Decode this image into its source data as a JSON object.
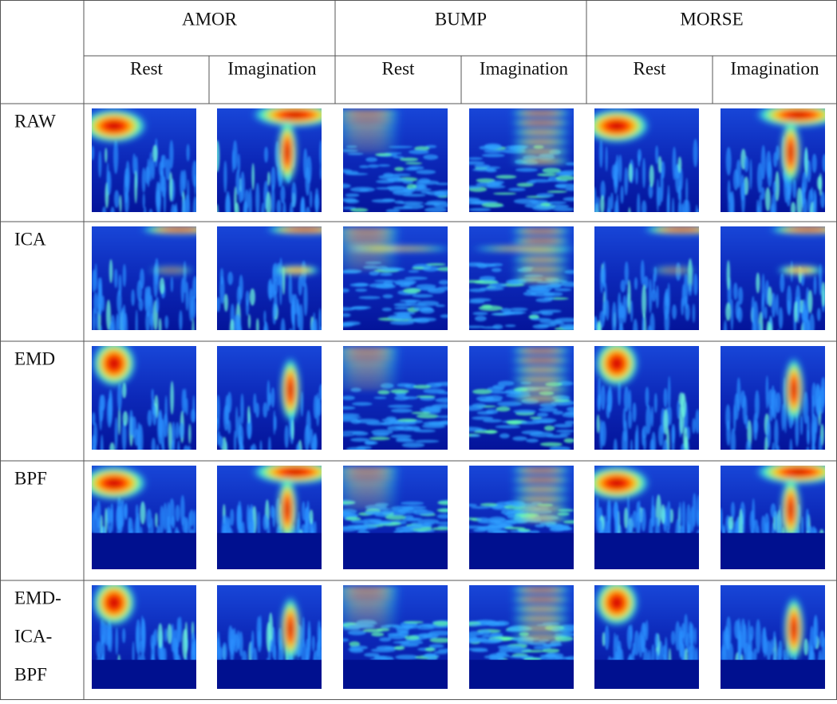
{
  "header": {
    "methods": [
      "AMOR",
      "BUMP",
      "MORSE"
    ],
    "conditions": [
      "Rest",
      "Imagination",
      "Rest",
      "Imagination",
      "Rest",
      "Imagination"
    ]
  },
  "rows": [
    {
      "label": [
        "RAW"
      ]
    },
    {
      "label": [
        "ICA"
      ]
    },
    {
      "label": [
        "EMD"
      ]
    },
    {
      "label": [
        "BPF"
      ]
    },
    {
      "label": [
        "EMD-",
        "ICA-",
        "BPF"
      ]
    }
  ]
}
